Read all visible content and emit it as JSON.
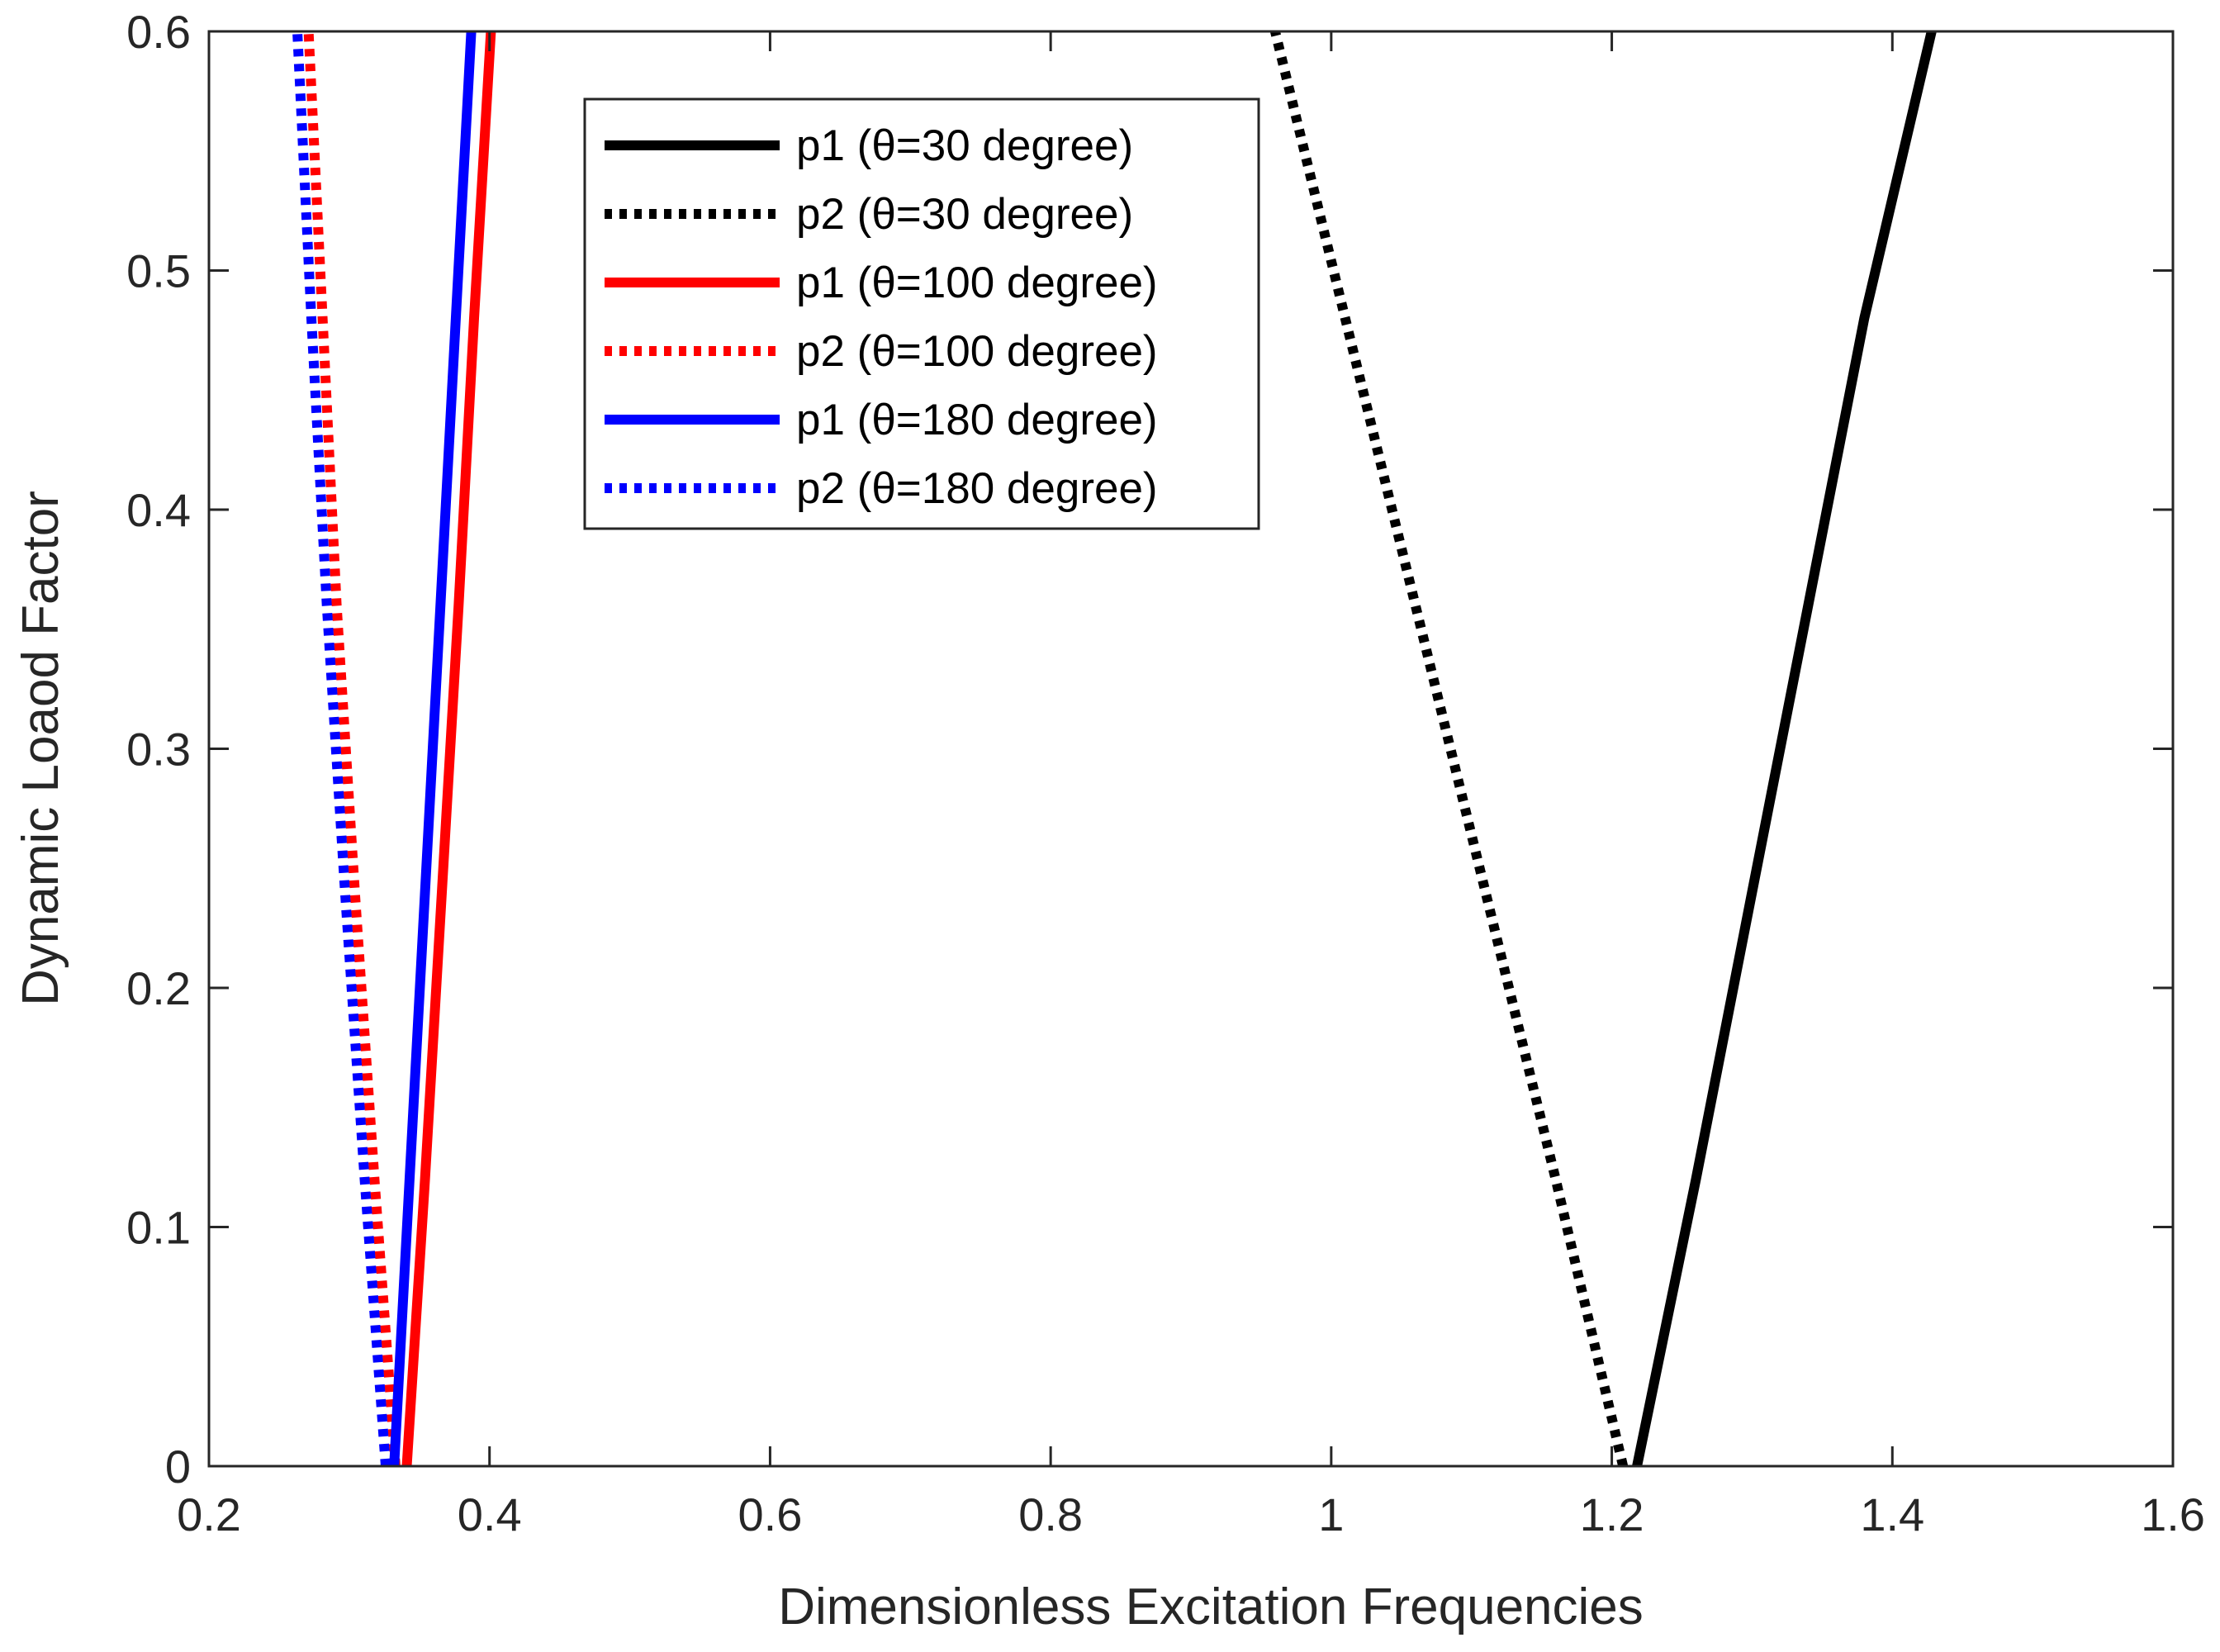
{
  "chart_data": {
    "type": "line",
    "title": "",
    "xlabel": "Dimensionless Excitation Frequencies",
    "ylabel": "Dynamic Loaod Factor",
    "xlim": [
      0.2,
      1.6
    ],
    "ylim": [
      0,
      0.6
    ],
    "xticks": [
      0.2,
      0.4,
      0.6,
      0.8,
      1.0,
      1.2,
      1.4,
      1.6
    ],
    "xtick_labels": [
      "0.2",
      "0.4",
      "0.6",
      "0.8",
      "1",
      "1.2",
      "1.4",
      "1.6"
    ],
    "yticks": [
      0,
      0.1,
      0.2,
      0.3,
      0.4,
      0.5,
      0.6
    ],
    "ytick_labels": [
      "0",
      "0.1",
      "0.2",
      "0.3",
      "0.4",
      "0.5",
      "0.6"
    ],
    "grid": false,
    "legend_position": "top-center",
    "series": [
      {
        "name": "p1 (θ=30 degree)",
        "color": "#000000",
        "dash": "solid",
        "x": [
          1.218,
          1.26,
          1.3,
          1.34,
          1.38,
          1.428
        ],
        "y": [
          0,
          0.12,
          0.24,
          0.36,
          0.48,
          0.6
        ]
      },
      {
        "name": "p2 (θ=30 degree)",
        "color": "#000000",
        "dash": "dotted",
        "x": [
          1.208,
          1.16,
          1.11,
          1.06,
          1.01,
          0.96
        ],
        "y": [
          0,
          0.12,
          0.24,
          0.36,
          0.48,
          0.6
        ]
      },
      {
        "name": "p1 (θ=100 degree)",
        "color": "#ff0000",
        "dash": "solid",
        "x": [
          0.341,
          0.354,
          0.366,
          0.378,
          0.389,
          0.401
        ],
        "y": [
          0,
          0.12,
          0.24,
          0.36,
          0.48,
          0.6
        ]
      },
      {
        "name": "p2 (θ=100 degree)",
        "color": "#ff0000",
        "dash": "dotted",
        "x": [
          0.333,
          0.318,
          0.304,
          0.291,
          0.281,
          0.271
        ],
        "y": [
          0,
          0.12,
          0.24,
          0.36,
          0.48,
          0.6
        ]
      },
      {
        "name": "p1 (θ=180 degree)",
        "color": "#0000ff",
        "dash": "solid",
        "x": [
          0.332,
          0.343,
          0.354,
          0.365,
          0.376,
          0.387
        ],
        "y": [
          0,
          0.12,
          0.24,
          0.36,
          0.48,
          0.6
        ]
      },
      {
        "name": "p2 (θ=180 degree)",
        "color": "#0000ff",
        "dash": "dotted",
        "x": [
          0.326,
          0.311,
          0.297,
          0.284,
          0.273,
          0.263
        ],
        "y": [
          0,
          0.12,
          0.24,
          0.36,
          0.48,
          0.6
        ]
      }
    ]
  }
}
